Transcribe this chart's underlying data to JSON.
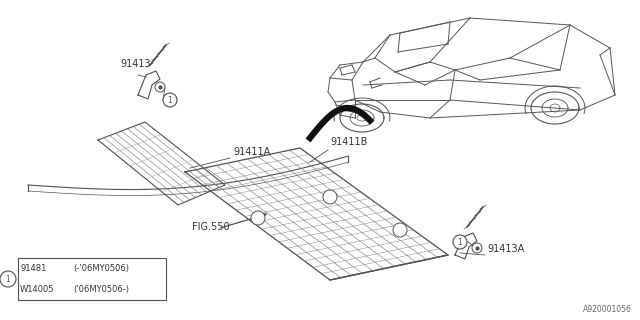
{
  "bg_color": "#ffffff",
  "line_color": "#505050",
  "diagram_code": "A920001056",
  "label_fontsize": 7.0,
  "table": {
    "rows": [
      {
        "col1": "91481",
        "col2": "(-’06MY0506)"
      },
      {
        "col1": "W14005",
        "col2": "(’06MY0506-)"
      }
    ]
  }
}
